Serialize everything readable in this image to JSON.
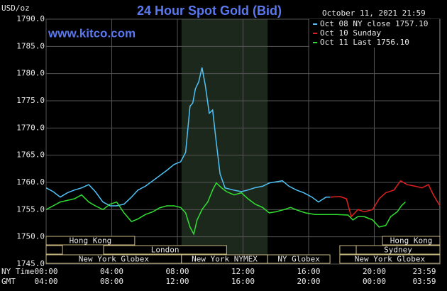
{
  "chart_data": {
    "type": "line",
    "title": "24 Hour Spot Gold (Bid)",
    "site": "www.kitco.com",
    "timestamp": "October 11, 2021 21:59",
    "y_label": "USD/oz",
    "x_label": "NY Time",
    "x2_label": "GMT",
    "xlim": [
      0,
      24
    ],
    "ylim": [
      1745,
      1790
    ],
    "yticks": [
      {
        "value": 1745,
        "label": "1745.0"
      },
      {
        "value": 1750,
        "label": "1750.0"
      },
      {
        "value": 1755,
        "label": "1755.0"
      },
      {
        "value": 1760,
        "label": "1760.0"
      },
      {
        "value": 1765,
        "label": "1765.0"
      },
      {
        "value": 1770,
        "label": "1770.0"
      },
      {
        "value": 1775,
        "label": "1775.0"
      },
      {
        "value": 1780,
        "label": "1780.0"
      },
      {
        "value": 1785,
        "label": "1785.0"
      },
      {
        "value": 1790,
        "label": "1790.0"
      }
    ],
    "xticks": [
      {
        "value": 0,
        "label": "00:00"
      },
      {
        "value": 4,
        "label": "04:00"
      },
      {
        "value": 8,
        "label": "08:00"
      },
      {
        "value": 12,
        "label": "12:00"
      },
      {
        "value": 16,
        "label": "16:00"
      },
      {
        "value": 20,
        "label": "20:00"
      },
      {
        "value": 23.98,
        "label": "23:59"
      }
    ],
    "x2ticks": [
      {
        "value": 0,
        "label": "04:00"
      },
      {
        "value": 4,
        "label": "08:00"
      },
      {
        "value": 8,
        "label": "12:00"
      },
      {
        "value": 12,
        "label": "16:00"
      },
      {
        "value": 16,
        "label": "20:00"
      },
      {
        "value": 20,
        "label": "00:00"
      },
      {
        "value": 23.98,
        "label": "03:59"
      }
    ],
    "grid": true,
    "legend": "top-right",
    "highlight": [
      8.25,
      13.5
    ],
    "session_rows": [
      [
        {
          "label": "Hong Kong",
          "start": 0,
          "end": 5.4
        },
        {
          "label": "Hong Kong",
          "start": 20.5,
          "end": 24
        }
      ],
      [
        {
          "start": 0,
          "end": 1
        },
        {
          "label": "London",
          "start": 3.5,
          "end": 11
        },
        {
          "start": 17.9,
          "end": 18.9
        },
        {
          "label": "Sydney",
          "start": 18.9,
          "end": 24
        }
      ],
      [
        {
          "label": "New York Globex",
          "start": 0,
          "end": 8.25
        },
        {
          "label": "New York NYMEX",
          "start": 8.25,
          "end": 13.5
        },
        {
          "label": "NY Globex",
          "start": 13.5,
          "end": 17.3
        },
        {
          "label": "New York Globex",
          "start": 17.9,
          "end": 24
        }
      ]
    ],
    "series": [
      {
        "name": "Oct 08 NY close 1757.10",
        "color": "#4fc3f7",
        "x": [
          0,
          0.43,
          0.86,
          1.3,
          1.73,
          2.16,
          2.6,
          3.0,
          3.46,
          3.9,
          4.3,
          4.75,
          5.2,
          5.6,
          6.05,
          6.5,
          6.9,
          7.35,
          7.8,
          8.2,
          8.5,
          8.77,
          8.94,
          9.1,
          9.3,
          9.5,
          9.7,
          9.94,
          10.15,
          10.37,
          10.6,
          10.9,
          11.4,
          11.9,
          12.3,
          12.7,
          13.2,
          13.6,
          14.0,
          14.4,
          14.8,
          15.25,
          15.7,
          16.2,
          16.6,
          17.06,
          17.3
        ],
        "values": [
          1759.0,
          1758.3,
          1757.3,
          1758.1,
          1758.6,
          1759.0,
          1759.6,
          1758.3,
          1756.4,
          1755.7,
          1755.7,
          1756.0,
          1757.3,
          1758.6,
          1759.3,
          1760.3,
          1761.2,
          1762.2,
          1763.3,
          1763.8,
          1765.5,
          1774.0,
          1774.6,
          1777.2,
          1778.5,
          1781.1,
          1777.9,
          1772.7,
          1773.3,
          1767.4,
          1761.6,
          1759.0,
          1758.6,
          1758.3,
          1758.6,
          1759.0,
          1759.3,
          1759.9,
          1760.1,
          1760.3,
          1759.3,
          1758.6,
          1758.1,
          1757.3,
          1756.4,
          1757.3,
          1757.3
        ]
      },
      {
        "name": "Oct 10 Sunday",
        "color": "#e02020",
        "x": [
          17.3,
          17.9,
          18.3,
          18.6,
          19.0,
          19.4,
          19.9,
          20.3,
          20.7,
          21.2,
          21.6,
          22.0,
          22.5,
          22.9,
          23.3,
          23.6,
          24.0
        ],
        "values": [
          1757.3,
          1757.4,
          1757.0,
          1753.7,
          1755.0,
          1754.6,
          1755.0,
          1757.0,
          1758.1,
          1758.6,
          1760.3,
          1759.6,
          1759.3,
          1759.0,
          1759.6,
          1757.7,
          1755.7
        ]
      },
      {
        "name": "Oct 11 Last 1756.10",
        "color": "#30e030",
        "x": [
          0,
          0.43,
          0.86,
          1.3,
          1.73,
          2.16,
          2.6,
          3.0,
          3.46,
          3.9,
          4.3,
          4.75,
          5.2,
          5.6,
          6.05,
          6.5,
          6.9,
          7.35,
          7.8,
          8.2,
          8.5,
          8.77,
          9.0,
          9.2,
          9.5,
          9.85,
          10.15,
          10.37,
          10.7,
          11.0,
          11.45,
          11.9,
          12.3,
          12.75,
          13.2,
          13.6,
          14.0,
          14.5,
          14.9,
          15.3,
          15.8,
          16.4,
          17.06,
          17.7,
          18.4,
          18.7,
          19.0,
          19.4,
          19.9,
          20.3,
          20.7,
          21.0,
          21.4,
          21.65,
          21.9
        ],
        "values": [
          1755.0,
          1755.7,
          1756.4,
          1756.7,
          1757.0,
          1757.7,
          1756.4,
          1755.7,
          1755.0,
          1756.0,
          1756.4,
          1754.4,
          1752.8,
          1753.3,
          1754.1,
          1754.6,
          1755.3,
          1755.7,
          1755.7,
          1755.4,
          1754.4,
          1751.8,
          1750.5,
          1753.1,
          1755.0,
          1756.4,
          1758.6,
          1759.9,
          1759.0,
          1758.3,
          1757.7,
          1758.1,
          1757.0,
          1756.0,
          1755.4,
          1754.4,
          1754.6,
          1755.0,
          1755.4,
          1754.9,
          1754.4,
          1754.1,
          1754.1,
          1754.1,
          1754.0,
          1753.1,
          1753.7,
          1753.7,
          1753.1,
          1751.8,
          1752.1,
          1753.7,
          1754.6,
          1755.7,
          1756.4
        ]
      }
    ]
  }
}
